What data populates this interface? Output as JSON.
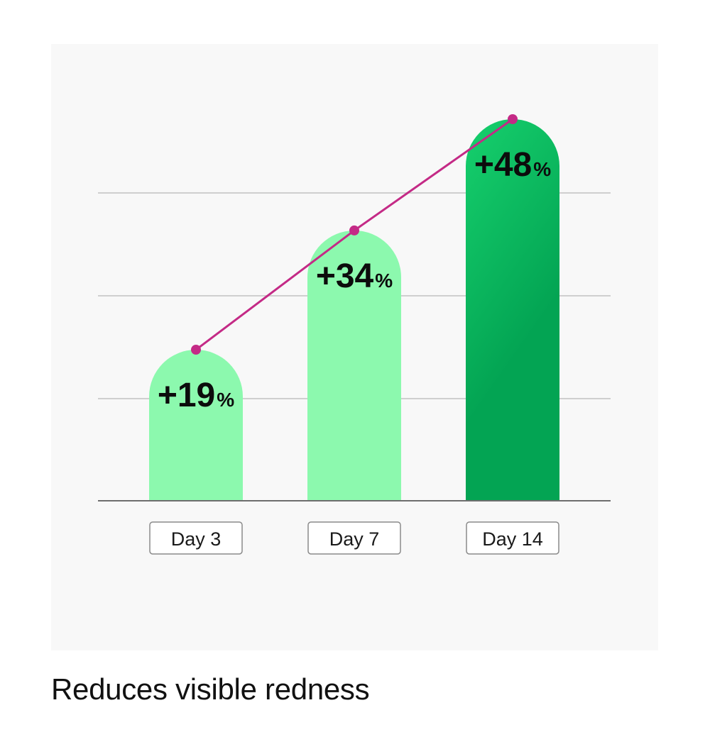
{
  "caption": "Reduces visible redness",
  "chart_data": {
    "type": "bar",
    "categories": [
      "Day 3",
      "Day 7",
      "Day 14"
    ],
    "values": [
      19,
      34,
      48
    ],
    "value_labels": [
      "+19",
      "+34",
      "+48"
    ],
    "value_unit": "%",
    "ylim": [
      0,
      48
    ],
    "grid": true,
    "trend_line": true,
    "title": "",
    "xlabel": "",
    "ylabel": "",
    "colors": {
      "bar_light": "#8cf9ae",
      "bar_highlight_top": "#16d06d",
      "bar_highlight_bottom": "#03a453",
      "line": "#c42a86",
      "gridline": "#cfcfcf",
      "baseline": "#6e6e6e"
    }
  }
}
